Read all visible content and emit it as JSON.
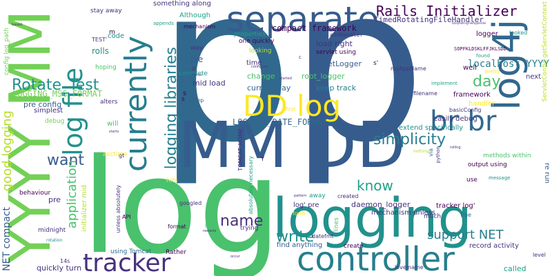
{
  "palette": {
    "dark_purple": "#46327e",
    "deep_violet": "#440154",
    "indigo": "#3b528b",
    "blue": "#365c8d",
    "steel": "#31688e",
    "teal": "#277f8e",
    "sea": "#21918c",
    "aqua": "#1fa187",
    "green": "#4ac16d",
    "light_green": "#73d056",
    "lime": "#b8de29",
    "yellow": "#fde725"
  },
  "words": {
    "p_left": "p",
    "p_right": "p",
    "log_big": "log",
    "logging": "logging",
    "mm_dd": "MM DD",
    "yyyy_mm": "YYYY MM",
    "separate": "separate",
    "controller": "controller",
    "tracker": "tracker",
    "log4j": "log4j",
    "currently": "currently",
    "log_file": "log file",
    "dd_log": "DD log",
    "br_br": "br br",
    "rails_initializer": "Rails Initializer",
    "rotate_test": "Rotate_Test",
    "logging_libraries": "logging libraries",
    "simplicity": "simplicity",
    "want": "want",
    "name": "name",
    "day": "day",
    "write": "write",
    "know": "know",
    "support_net": "support NET",
    "localhost_yyyy": "localhost YYYY",
    "application": "application",
    "good_logging": "good logging",
    "logging_msg_format": "LOGGING_MSG_FORMAT",
    "logging_date_format": "LOGGING_DATE_FORMAT",
    "compact_framework": "compact framework",
    "timed_rotating": "TimedRotatingFileHandler",
    "something_along": "something along",
    "stay_away": "stay away",
    "although": "Although",
    "code": "code",
    "test": "TEST'",
    "rolls": "rolls",
    "hoping": "hoping",
    "alters": "alters",
    "simplest": "simplest",
    "pre_config": "pre config",
    "debug": "debug",
    "will": "will",
    "asctime": "asctime",
    "behaviour": "behaviour",
    "pre": "pre",
    "midnight": "midnight",
    "rotation": "rotation",
    "net_compact": "NET compact",
    "quickly_turn": "quickly turn",
    "m": "m",
    "mechanism": "mechanism",
    "properties": "properties",
    "one_quickly": "one quickly",
    "looking": "looking",
    "way": "way",
    "file": "file",
    "d": "d",
    "complete": "complete",
    "mid_load": "mid load",
    "s": "s",
    "sleep": "sleep",
    "first": "first",
    "time": "time",
    "change": "change",
    "current_day": "current day",
    "keep_track": "keep track",
    "load_right": "load right",
    "servlet_using": "servlet using",
    "get_logger": "getLogger",
    "root_logger": "root_logger",
    "add_handler": "addHandler",
    "logger": "logger",
    "my_app_name": "myAppName",
    "well": "well",
    "next": "next",
    "implement": "implement",
    "filename": "filename",
    "framework": "framework",
    "handler": "handler",
    "basic_config": "basicConfig",
    "easily_debug": "easily debug",
    "extend_specifically": "extend specifically",
    "methods_within": "methods within",
    "output_using": "output using",
    "re_run": "re run",
    "servlet_config": "ServletConfig getServletContext",
    "looked": "looked",
    "found": "found",
    "pretty": "pretty",
    "sopfkl": "SOPFKLDSKLFFJKLSDD",
    "daemon_logger": "daemon_logger",
    "mechanism_unless": "mechanism unless",
    "tracker_log": "tracker log'",
    "log_pre": "log' pre",
    "away": "away",
    "created": "created",
    "find_anything": "find anything",
    "lines": "lines",
    "create": "create",
    "datefmt": "datefmt",
    "much": "much",
    "true": "True",
    "form": "form",
    "record_activity": "record activity",
    "called": "called",
    "level": "level",
    "levelname": "levelname",
    "tomcat_home": "TOMCAT_HOME",
    "absolutely_necessary": "absolutely necessary",
    "using_tomcat": "using Tomcat",
    "rather": "Rather",
    "trying": "trying",
    "info": "info",
    "format": "format",
    "googled": "googled",
    "hits": "hits",
    "api": "API",
    "fourteen_s": "14s",
    "unless_absolutely": "unless absolutely",
    "initializer_mid": "initializer mid",
    "restarts": "restarts",
    "occur": "occur",
    "via": "via",
    "python": "python",
    "use": "use",
    "message": "message",
    "nothing": "nothing",
    "rolling": "rolling",
    "daily_rolling": "DailyRollingFileAppender",
    "config_log_path": "config log_path",
    "based": "based",
    "appends": "appends",
    "configure": "configure",
    "starts": "starts",
    "gt": "gt",
    "y": "Y",
    "c": "c",
    "s_quote": "s'",
    "started": "started",
    "pattern": "pattern",
    "dismiss": "dismiss",
    "s2": "s"
  }
}
